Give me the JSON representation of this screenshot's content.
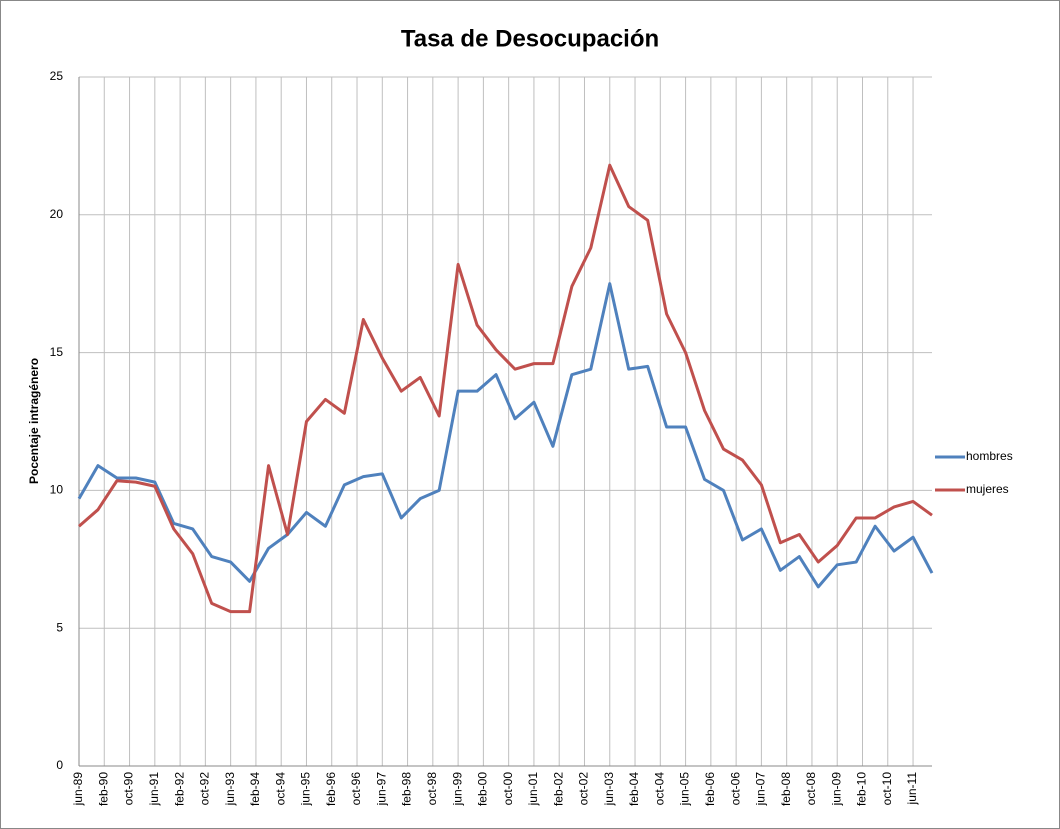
{
  "chart_data": {
    "type": "line",
    "title": "Tasa de Desocupación",
    "y_label": "Pocentaje intragénero",
    "x": [
      0,
      6,
      12,
      18,
      24,
      30,
      36,
      42,
      48,
      54,
      60,
      66,
      72,
      78,
      84,
      90,
      96,
      102,
      108,
      114,
      120,
      126,
      132,
      138,
      144,
      150,
      156,
      162,
      168,
      174,
      180,
      186,
      192,
      198,
      204,
      210,
      216,
      222,
      228,
      234,
      240,
      246,
      252,
      258,
      264,
      270
    ],
    "xlim": [
      0,
      270
    ],
    "xticks": [
      {
        "value": 0,
        "label": "jun-89"
      },
      {
        "value": 8,
        "label": "feb-90"
      },
      {
        "value": 16,
        "label": "oct-90"
      },
      {
        "value": 24,
        "label": "jun-91"
      },
      {
        "value": 32,
        "label": "feb-92"
      },
      {
        "value": 40,
        "label": "oct-92"
      },
      {
        "value": 48,
        "label": "jun-93"
      },
      {
        "value": 56,
        "label": "feb-94"
      },
      {
        "value": 64,
        "label": "oct-94"
      },
      {
        "value": 72,
        "label": "jun-95"
      },
      {
        "value": 80,
        "label": "feb-96"
      },
      {
        "value": 88,
        "label": "oct-96"
      },
      {
        "value": 96,
        "label": "jun-97"
      },
      {
        "value": 104,
        "label": "feb-98"
      },
      {
        "value": 112,
        "label": "oct-98"
      },
      {
        "value": 120,
        "label": "jun-99"
      },
      {
        "value": 128,
        "label": "feb-00"
      },
      {
        "value": 136,
        "label": "oct-00"
      },
      {
        "value": 144,
        "label": "jun-01"
      },
      {
        "value": 152,
        "label": "feb-02"
      },
      {
        "value": 160,
        "label": "oct-02"
      },
      {
        "value": 168,
        "label": "jun-03"
      },
      {
        "value": 176,
        "label": "feb-04"
      },
      {
        "value": 184,
        "label": "oct-04"
      },
      {
        "value": 192,
        "label": "jun-05"
      },
      {
        "value": 200,
        "label": "feb-06"
      },
      {
        "value": 208,
        "label": "oct-06"
      },
      {
        "value": 216,
        "label": "jun-07"
      },
      {
        "value": 224,
        "label": "feb-08"
      },
      {
        "value": 232,
        "label": "oct-08"
      },
      {
        "value": 240,
        "label": "jun-09"
      },
      {
        "value": 248,
        "label": "feb-10"
      },
      {
        "value": 256,
        "label": "oct-10"
      },
      {
        "value": 264,
        "label": "jun-11"
      }
    ],
    "ylim": [
      0,
      25
    ],
    "yticks": [
      0,
      5,
      10,
      15,
      20,
      25
    ],
    "grid": true,
    "legend": "right",
    "series": [
      {
        "name": "hombres",
        "color": "#4f81bd",
        "values": [
          9.7,
          10.9,
          10.45,
          10.45,
          10.3,
          8.8,
          8.6,
          7.6,
          7.4,
          6.7,
          7.9,
          8.4,
          9.2,
          8.7,
          10.2,
          10.5,
          10.6,
          9.0,
          9.7,
          10.0,
          13.6,
          13.6,
          14.2,
          12.6,
          13.2,
          11.6,
          14.2,
          14.4,
          17.5,
          14.4,
          14.5,
          12.3,
          12.3,
          10.4,
          10.0,
          8.2,
          8.6,
          7.1,
          7.6,
          6.5,
          7.3,
          7.4,
          8.7,
          7.8,
          8.3,
          7.0
        ]
      },
      {
        "name": "mujeres",
        "color": "#c0504d",
        "values": [
          8.7,
          9.3,
          10.35,
          10.3,
          10.15,
          8.6,
          7.7,
          5.9,
          5.6,
          5.6,
          10.9,
          8.4,
          12.5,
          13.3,
          12.8,
          16.2,
          14.8,
          13.6,
          14.1,
          12.7,
          18.2,
          16.0,
          15.1,
          14.4,
          14.6,
          14.6,
          17.4,
          18.8,
          21.8,
          20.3,
          19.8,
          16.4,
          15.0,
          12.9,
          11.5,
          11.1,
          10.2,
          8.1,
          8.4,
          7.4,
          8.0,
          9.0,
          9.0,
          9.4,
          9.6,
          9.1
        ]
      }
    ]
  }
}
